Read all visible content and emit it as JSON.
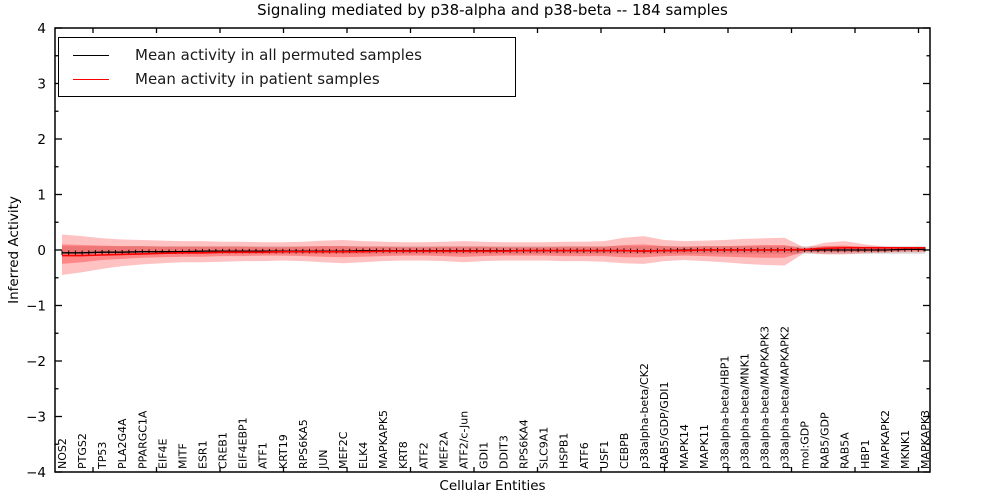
{
  "figure": {
    "title": "Signaling mediated by p38-alpha and p38-beta -- 184 samples",
    "xlabel": "Cellular Entities",
    "ylabel": "Inferred Activity"
  },
  "legend": {
    "entries": [
      {
        "label": "Mean activity in all permuted samples",
        "color": "#000000"
      },
      {
        "label": "Mean activity in patient samples",
        "color": "#ff0000"
      }
    ]
  },
  "chart_data": {
    "type": "line",
    "title": "Signaling mediated by p38-alpha and p38-beta -- 184 samples",
    "xlabel": "Cellular Entities",
    "ylabel": "Inferred Activity",
    "ylim": [
      -4,
      4
    ],
    "yticks": [
      4,
      3,
      2,
      1,
      0,
      -1,
      -2,
      -3,
      -4
    ],
    "grid": false,
    "legend_position": "upper left",
    "categories": [
      "NOS2",
      "PTGS2",
      "TP53",
      "PLA2G4A",
      "PPARGC1A",
      "EIF4E",
      "MITF",
      "ESR1",
      "CREB1",
      "EIF4EBP1",
      "ATF1",
      "KRT19",
      "RPS6KA5",
      "JUN",
      "MEF2C",
      "ELK4",
      "MAPKAPK5",
      "KRT8",
      "ATF2",
      "MEF2A",
      "ATF2/c-Jun",
      "GDI1",
      "DDIT3",
      "RPS6KA4",
      "SLC9A1",
      "HSPB1",
      "ATF6",
      "USF1",
      "CEBPB",
      "p38alpha-beta/CK2",
      "RAB5/GDP/GDI1",
      "MAPK14",
      "MAPK11",
      "p38alpha-beta/HBP1",
      "p38alpha-beta/MNK1",
      "p38alpha-beta/MAPKAPK3",
      "p38alpha-beta/MAPKAPK2",
      "mol:GDP",
      "RAB5/GDP",
      "RAB5A",
      "HBP1",
      "MAPKAPK2",
      "MKNK1",
      "MAPKAPK3"
    ],
    "series": [
      {
        "name": "Mean activity in all permuted samples",
        "color": "#000000",
        "style": "solid-with-tick-markers",
        "values": [
          -0.05,
          -0.05,
          -0.04,
          -0.04,
          -0.03,
          -0.03,
          -0.03,
          -0.02,
          -0.02,
          -0.02,
          -0.02,
          -0.02,
          -0.02,
          -0.02,
          -0.02,
          -0.01,
          -0.01,
          -0.01,
          -0.01,
          -0.01,
          -0.01,
          -0.01,
          -0.01,
          -0.01,
          -0.01,
          -0.01,
          -0.01,
          -0.01,
          -0.01,
          -0.02,
          -0.01,
          0,
          0,
          0,
          0,
          0,
          0,
          0,
          0,
          0,
          0,
          0,
          0.01,
          0.01
        ]
      },
      {
        "name": "Mean activity in patient samples",
        "color": "#ff0000",
        "style": "solid",
        "values": [
          -0.1,
          -0.1,
          -0.09,
          -0.08,
          -0.07,
          -0.06,
          -0.05,
          -0.05,
          -0.04,
          -0.04,
          -0.04,
          -0.03,
          -0.03,
          -0.03,
          -0.03,
          -0.03,
          -0.02,
          -0.02,
          -0.02,
          -0.02,
          -0.02,
          -0.02,
          -0.02,
          -0.01,
          -0.01,
          -0.01,
          -0.01,
          -0.01,
          -0.01,
          -0.02,
          -0.01,
          -0.01,
          0,
          0,
          0,
          0,
          0,
          0.01,
          0.03,
          0.04,
          0.04,
          0.04,
          0.04,
          0.04
        ]
      }
    ],
    "bands": [
      {
        "name": "permuted-std",
        "color": "rgba(0,0,0,0.13)",
        "const_top": 0.07,
        "const_bottom": -0.07
      },
      {
        "name": "patient-std-outer",
        "color": "rgba(255,0,0,0.24)",
        "top": [
          0.28,
          0.25,
          0.21,
          0.19,
          0.18,
          0.17,
          0.16,
          0.16,
          0.15,
          0.15,
          0.14,
          0.14,
          0.15,
          0.17,
          0.18,
          0.16,
          0.15,
          0.14,
          0.14,
          0.15,
          0.16,
          0.15,
          0.14,
          0.14,
          0.14,
          0.15,
          0.15,
          0.16,
          0.22,
          0.25,
          0.18,
          0.16,
          0.17,
          0.18,
          0.2,
          0.21,
          0.22,
          0.04,
          0.13,
          0.16,
          0.1,
          0.06,
          0.05,
          0.05
        ],
        "bottom": [
          -0.45,
          -0.4,
          -0.34,
          -0.29,
          -0.26,
          -0.24,
          -0.22,
          -0.22,
          -0.21,
          -0.2,
          -0.2,
          -0.19,
          -0.2,
          -0.22,
          -0.24,
          -0.22,
          -0.2,
          -0.19,
          -0.19,
          -0.2,
          -0.22,
          -0.2,
          -0.19,
          -0.19,
          -0.19,
          -0.2,
          -0.2,
          -0.21,
          -0.24,
          -0.25,
          -0.2,
          -0.18,
          -0.2,
          -0.22,
          -0.25,
          -0.27,
          -0.28,
          -0.05,
          -0.08,
          -0.08,
          -0.06,
          -0.05,
          -0.04,
          -0.04
        ]
      },
      {
        "name": "patient-std-inner",
        "color": "rgba(255,0,0,0.30)",
        "top": [
          0.1,
          0.09,
          0.08,
          0.07,
          0.07,
          0.06,
          0.06,
          0.06,
          0.06,
          0.06,
          0.05,
          0.05,
          0.06,
          0.07,
          0.07,
          0.06,
          0.06,
          0.05,
          0.05,
          0.06,
          0.06,
          0.06,
          0.05,
          0.05,
          0.05,
          0.06,
          0.06,
          0.06,
          0.09,
          0.1,
          0.07,
          0.06,
          0.07,
          0.07,
          0.08,
          0.09,
          0.09,
          0.02,
          0.07,
          0.08,
          0.05,
          0.03,
          0.03,
          0.03
        ],
        "bottom": [
          -0.25,
          -0.22,
          -0.18,
          -0.16,
          -0.14,
          -0.13,
          -0.12,
          -0.12,
          -0.11,
          -0.11,
          -0.1,
          -0.1,
          -0.11,
          -0.12,
          -0.13,
          -0.12,
          -0.11,
          -0.1,
          -0.1,
          -0.11,
          -0.12,
          -0.11,
          -0.1,
          -0.1,
          -0.1,
          -0.11,
          -0.11,
          -0.11,
          -0.13,
          -0.13,
          -0.11,
          -0.1,
          -0.11,
          -0.12,
          -0.13,
          -0.14,
          -0.14,
          -0.03,
          -0.04,
          -0.04,
          -0.03,
          -0.03,
          -0.02,
          -0.02
        ]
      }
    ]
  }
}
